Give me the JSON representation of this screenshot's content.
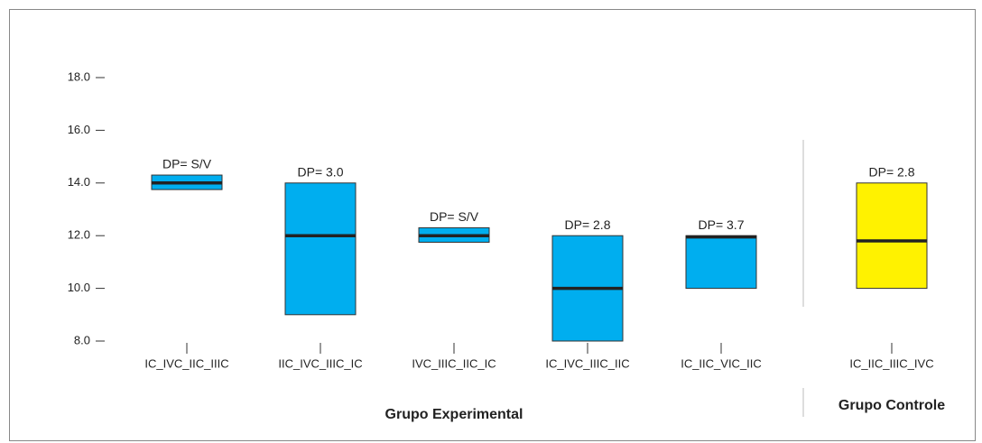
{
  "chart_data": {
    "type": "range_box",
    "ylim": [
      8,
      18
    ],
    "yticks": [
      {
        "value": 8,
        "label": "8.0"
      },
      {
        "value": 10,
        "label": "10.0"
      },
      {
        "value": 12,
        "label": "12.0"
      },
      {
        "value": 14,
        "label": "14.0"
      },
      {
        "value": 16,
        "label": "16.0"
      },
      {
        "value": 18,
        "label": "18.0"
      }
    ],
    "groups": [
      {
        "name": "Grupo Experimental",
        "color": "#00aeef",
        "categories": [
          "IC_IVC_IIC_IIIC",
          "IIC_IVC_IIIC_IC",
          "IVC_IIIC_IIC_IC",
          "IC_IVC_IIIC_IIC",
          "IC_IIC_VIC_IIC"
        ],
        "low": [
          13.75,
          9,
          11.75,
          8,
          10
        ],
        "high": [
          14.3,
          14,
          12.3,
          12,
          12
        ],
        "median": [
          14,
          12,
          12,
          10,
          11.95
        ],
        "annotations": [
          "DP= S/V",
          "DP= 3.0",
          "DP= S/V",
          "DP= 2.8",
          "DP= 3.7"
        ]
      },
      {
        "name": "Grupo Controle",
        "color": "#fff200",
        "categories": [
          "IC_IIC_IIIC_IVC"
        ],
        "low": [
          10
        ],
        "high": [
          14
        ],
        "median": [
          11.8
        ],
        "annotations": [
          "DP= 2.8"
        ]
      }
    ]
  }
}
